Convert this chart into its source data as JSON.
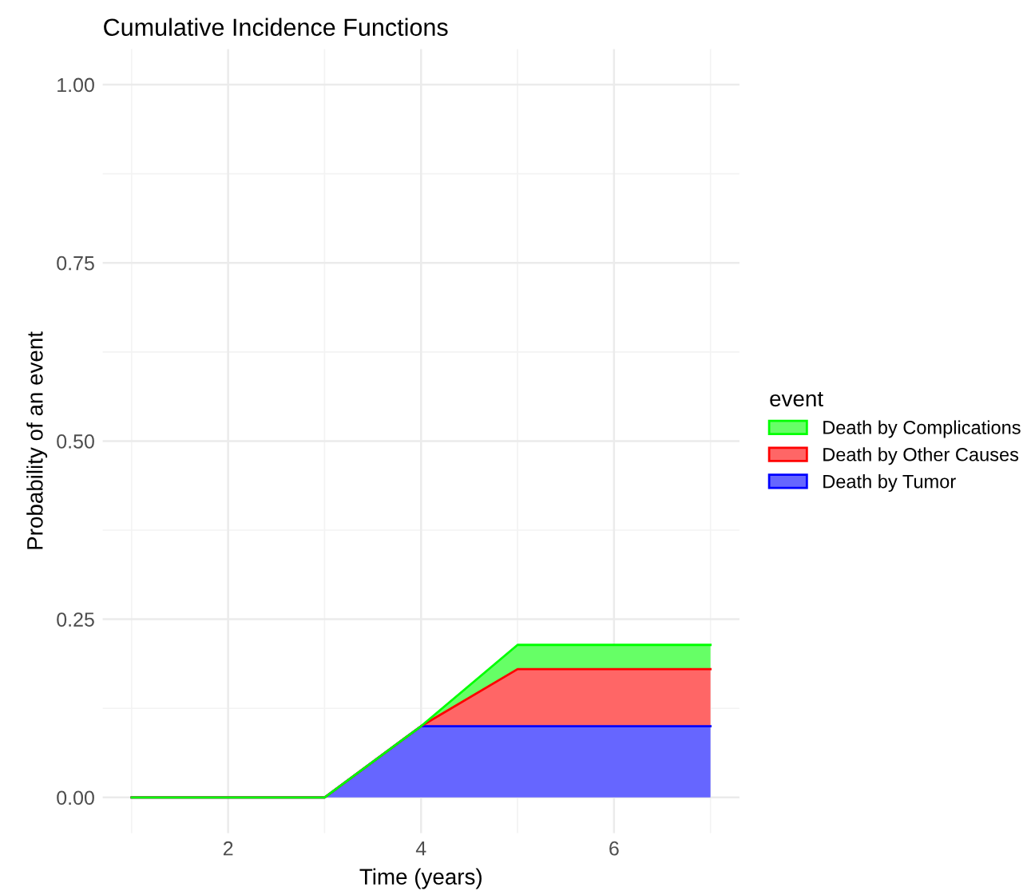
{
  "chart_data": {
    "type": "area",
    "stacked": true,
    "title": "Cumulative Incidence Functions",
    "xlabel": "Time (years)",
    "ylabel": "Probability of an event",
    "legend_title": "event",
    "legend": "right",
    "grid": true,
    "x": [
      1,
      2,
      3,
      4,
      5,
      6,
      7
    ],
    "series": [
      {
        "name": "Death by Tumor",
        "color": "#6666ff",
        "values": [
          0,
          0,
          0,
          0.1,
          0.1,
          0.1,
          0.1
        ]
      },
      {
        "name": "Death by Other Causes",
        "color": "#ff6666",
        "values": [
          0,
          0,
          0,
          0,
          0.08,
          0.08,
          0.08
        ]
      },
      {
        "name": "Death by Complications",
        "color": "#66ff66",
        "values": [
          0,
          0,
          0,
          0,
          0.034,
          0.034,
          0.034
        ]
      }
    ],
    "xlim": [
      0.7,
      7.3
    ],
    "xticks": [
      2,
      4,
      6
    ],
    "ylim": [
      -0.05,
      1.05
    ],
    "yticks": [
      {
        "value": 0,
        "label": "0.00"
      },
      {
        "value": 0.25,
        "label": "0.25"
      },
      {
        "value": 0.5,
        "label": "0.50"
      },
      {
        "value": 0.75,
        "label": "0.75"
      },
      {
        "value": 1,
        "label": "1.00"
      }
    ]
  }
}
